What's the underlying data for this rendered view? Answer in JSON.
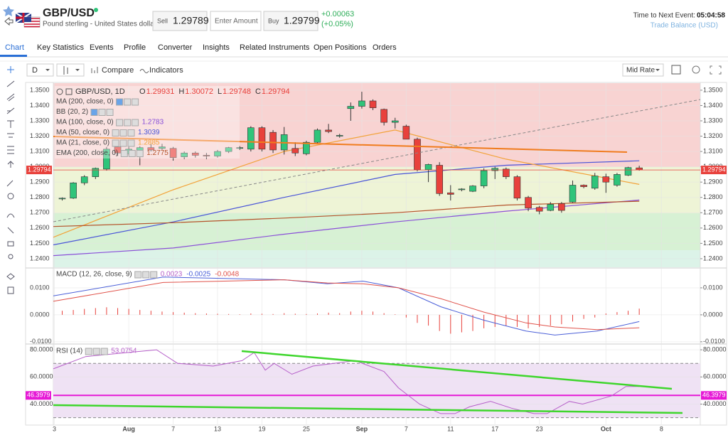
{
  "header": {
    "symbol": "GBP/USD",
    "description": "Pound sterling - United States dollar",
    "sell_label": "Sell",
    "sell_price": "1.29789",
    "amount_placeholder": "Enter Amount",
    "buy_label": "Buy",
    "buy_price": "1.29799",
    "change": "+0.00063",
    "change_pct": "(+0.05%)",
    "next_event_label": "Time to Next Event:",
    "next_event_time": "05:04:58",
    "next_event_name": "Trade Balance (USD)"
  },
  "tabs": [
    "Chart",
    "Key Statistics",
    "Events",
    "Profile",
    "Converter",
    "Insights",
    "Related Instruments",
    "Open Positions",
    "Orders"
  ],
  "toolbar": {
    "interval": "D",
    "compare": "Compare",
    "indicators": "Indicators",
    "price_type": "Mid Rate"
  },
  "chart_data": [
    {
      "type": "candlestick",
      "title": "GBP/USD, 1D",
      "ohlc_legend": [
        {
          "name": "O",
          "value": 1.29931
        },
        {
          "name": "H",
          "value": 1.30072
        },
        {
          "name": "L",
          "value": 1.29748
        },
        {
          "name": "C",
          "value": 1.29794
        }
      ],
      "current_price": 1.29794,
      "xlim": [
        -0.8,
        57.5
      ],
      "xticks": [
        {
          "value": -0.7,
          "label": "3"
        },
        {
          "value": 6,
          "label": "Aug"
        },
        {
          "value": 10,
          "label": "7"
        },
        {
          "value": 14,
          "label": "13"
        },
        {
          "value": 18,
          "label": "19"
        },
        {
          "value": 22,
          "label": "25"
        },
        {
          "value": 27,
          "label": "Sep"
        },
        {
          "value": 31,
          "label": "7"
        },
        {
          "value": 35,
          "label": "11"
        },
        {
          "value": 39,
          "label": "17"
        },
        {
          "value": 43,
          "label": "23"
        },
        {
          "value": 49,
          "label": "Oct"
        },
        {
          "value": 54,
          "label": "8"
        }
      ],
      "ylim": [
        1.2344,
        1.3546
      ],
      "yticks": [
        {
          "value": 1.35,
          "label": "1.3500"
        },
        {
          "value": 1.34,
          "label": "1.3400"
        },
        {
          "value": 1.33,
          "label": "1.3300"
        },
        {
          "value": 1.32,
          "label": "1.3200"
        },
        {
          "value": 1.31,
          "label": "1.3100"
        },
        {
          "value": 1.3,
          "label": "1.3000"
        },
        {
          "value": 1.29,
          "label": "1.2900"
        },
        {
          "value": 1.28,
          "label": "1.2800"
        },
        {
          "value": 1.27,
          "label": "1.2700"
        },
        {
          "value": 1.26,
          "label": "1.2600"
        },
        {
          "value": 1.25,
          "label": "1.2500"
        },
        {
          "value": 1.24,
          "label": "1.2400"
        }
      ],
      "up_color": "#2fc47a",
      "down_color": "#e8413c",
      "ohlc": [
        [
          1.279,
          1.28,
          1.278,
          1.2795
        ],
        [
          1.2795,
          1.29,
          1.279,
          1.2895
        ],
        [
          1.2895,
          1.2945,
          1.288,
          1.2935
        ],
        [
          1.2935,
          1.2995,
          1.292,
          1.299
        ],
        [
          1.2985,
          1.313,
          1.2975,
          1.3115
        ],
        [
          1.313,
          1.3145,
          1.307,
          1.309
        ],
        [
          1.3085,
          1.313,
          1.3075,
          1.3115
        ],
        [
          1.31,
          1.3135,
          1.301,
          1.3125
        ],
        [
          1.3125,
          1.315,
          1.31,
          1.311
        ],
        [
          1.312,
          1.315,
          1.311,
          1.313
        ],
        [
          1.312,
          1.313,
          1.304,
          1.306
        ],
        [
          1.3065,
          1.31,
          1.305,
          1.309
        ],
        [
          1.309,
          1.31,
          1.306,
          1.3075
        ],
        [
          1.3075,
          1.309,
          1.305,
          1.307
        ],
        [
          1.307,
          1.311,
          1.306,
          1.31
        ],
        [
          1.31,
          1.313,
          1.309,
          1.3125
        ],
        [
          1.312,
          1.3135,
          1.311,
          1.3125
        ],
        [
          1.3115,
          1.3265,
          1.31,
          1.3255
        ],
        [
          1.3255,
          1.3265,
          1.31,
          1.3115
        ],
        [
          1.3225,
          1.324,
          1.309,
          1.311
        ],
        [
          1.311,
          1.326,
          1.308,
          1.321
        ],
        [
          1.312,
          1.316,
          1.307,
          1.309
        ],
        [
          1.3085,
          1.317,
          1.3075,
          1.316
        ],
        [
          1.316,
          1.325,
          1.315,
          1.324
        ],
        [
          1.324,
          1.328,
          1.322,
          1.323
        ],
        [
          1.32,
          1.3215,
          1.319,
          1.3205
        ],
        [
          1.338,
          1.342,
          1.33,
          1.3395
        ],
        [
          1.3395,
          1.349,
          1.338,
          1.343
        ],
        [
          1.343,
          1.344,
          1.337,
          1.3385
        ],
        [
          1.3375,
          1.338,
          1.327,
          1.329
        ],
        [
          1.329,
          1.332,
          1.325,
          1.33
        ],
        [
          1.3265,
          1.3275,
          1.318,
          1.318
        ],
        [
          1.318,
          1.319,
          1.297,
          1.298
        ],
        [
          1.298,
          1.302,
          1.29,
          1.3015
        ],
        [
          1.301,
          1.303,
          1.281,
          1.2825
        ],
        [
          1.283,
          1.288,
          1.278,
          1.282
        ],
        [
          1.285,
          1.286,
          1.284,
          1.2855
        ],
        [
          1.284,
          1.288,
          1.2835,
          1.2875
        ],
        [
          1.2875,
          1.299,
          1.286,
          1.2975
        ],
        [
          1.2975,
          1.3,
          1.292,
          1.299
        ],
        [
          1.2985,
          1.2995,
          1.292,
          1.2935
        ],
        [
          1.2935,
          1.2945,
          1.278,
          1.2795
        ],
        [
          1.28,
          1.281,
          1.271,
          1.273
        ],
        [
          1.2735,
          1.2745,
          1.269,
          1.271
        ],
        [
          1.2715,
          1.277,
          1.271,
          1.2755
        ],
        [
          1.276,
          1.277,
          1.27,
          1.2715
        ],
        [
          1.277,
          1.291,
          1.2765,
          1.288
        ],
        [
          1.288,
          1.2885,
          1.286,
          1.287
        ],
        [
          1.286,
          1.296,
          1.285,
          1.294
        ],
        [
          1.2935,
          1.2955,
          1.283,
          1.29
        ],
        [
          1.288,
          1.296,
          1.287,
          1.295
        ],
        [
          1.2945,
          1.3,
          1.294,
          1.2995
        ],
        [
          1.29931,
          1.30072,
          1.29748,
          1.29794
        ]
      ],
      "legend_only": [
        "MA (200, close, 0)",
        "BB (20, 2)"
      ],
      "series": [
        {
          "name": "MA (100, close, 0)",
          "color": "#8a4fd8",
          "value_label": "1.2783",
          "x": [
            -0.8,
            10,
            20,
            30,
            40,
            52
          ],
          "values": [
            1.242,
            1.247,
            1.256,
            1.264,
            1.271,
            1.2783
          ]
        },
        {
          "name": "MA (50, close, 0)",
          "color": "#4a55d8",
          "value_label": "1.3039",
          "x": [
            -0.8,
            10,
            20,
            30,
            40,
            52
          ],
          "values": [
            1.249,
            1.264,
            1.28,
            1.295,
            1.301,
            1.3039
          ]
        },
        {
          "name": "MA (21, close, 0)",
          "color": "#f2a33a",
          "value_label": "1.2885",
          "x": [
            -0.8,
            10,
            20,
            30,
            40,
            52
          ],
          "values": [
            1.254,
            1.285,
            1.31,
            1.324,
            1.305,
            1.2885
          ]
        },
        {
          "name": "EMA (200, close, 0)",
          "color": "#b5532b",
          "value_label": "1.2775",
          "x": [
            -0.8,
            10,
            20,
            30,
            40,
            52
          ],
          "values": [
            1.261,
            1.2635,
            1.2665,
            1.27,
            1.275,
            1.2775
          ]
        }
      ]
    },
    {
      "type": "macd",
      "title": "MACD (12, 26, close, 9)",
      "ylim": [
        -0.0103,
        0.0171
      ],
      "yticks": [
        {
          "value": 0.01,
          "label": "0.0100"
        },
        {
          "value": 0,
          "label": "0.0000"
        },
        {
          "value": -0.01,
          "label": "-0.0100"
        }
      ],
      "histogram": {
        "color": "#e8413c",
        "value_label": "0.0023",
        "values": [
          0.0015,
          0.0018,
          0.0022,
          0.0025,
          0.0028,
          0.0025,
          0.0022,
          0.0018,
          0.0015,
          0.0012,
          0.001,
          0.0008,
          0.0006,
          0.0005,
          0.0004,
          0.0003,
          0.0002,
          0.0005,
          0.0004,
          0.0003,
          0.0006,
          0.0004,
          0.0003,
          0.0005,
          0.0008,
          0.0006,
          0.0012,
          0.0015,
          0.0012,
          0.0006,
          0.0002,
          -0.001,
          -0.003,
          -0.004,
          -0.006,
          -0.007,
          -0.0065,
          -0.006,
          -0.005,
          -0.0045,
          -0.004,
          -0.0045,
          -0.005,
          -0.0045,
          -0.004,
          -0.0035,
          -0.0025,
          -0.0015,
          -0.001,
          0.0005,
          0.001,
          0.0015,
          0.0023
        ]
      },
      "series": [
        {
          "color": "#4a5fd8",
          "value_label": "-0.0025",
          "x": [
            -0.8,
            9.1,
            20,
            23.9,
            27.1,
            30.3,
            34.1,
            38,
            41.8,
            44.4,
            48.2,
            52
          ],
          "values": [
            0.007,
            0.014,
            0.013,
            0.0115,
            0.0125,
            0.01,
            0.003,
            -0.002,
            -0.006,
            -0.0075,
            -0.006,
            -0.0025
          ]
        },
        {
          "color": "#e0524a",
          "value_label": "-0.0048",
          "x": [
            -0.8,
            9.1,
            20,
            23.9,
            27.1,
            30.3,
            34.1,
            38,
            41.8,
            44.4,
            48.2,
            52
          ],
          "values": [
            0.005,
            0.012,
            0.013,
            0.0118,
            0.0115,
            0.01,
            0.006,
            0.001,
            -0.003,
            -0.0045,
            -0.0055,
            -0.0048
          ]
        }
      ]
    },
    {
      "type": "rsi",
      "title": "RSI (14)",
      "ylim": [
        25.1,
        83.2
      ],
      "yticks": [
        {
          "value": 80,
          "label": "80.0000"
        },
        {
          "value": 60,
          "label": "60.0000"
        },
        {
          "value": 40,
          "label": "40.0000"
        }
      ],
      "band": [
        30,
        70
      ],
      "level": 46.3979,
      "level_color": "#e619d6",
      "series": [
        {
          "color": "#b65fc9",
          "value_label": "53.0754",
          "x": [
            -0.8,
            2.1,
            8.5,
            10.4,
            13.6,
            16.2,
            17.3,
            18.3,
            19.1,
            20.7,
            22.6,
            26.4,
            29,
            30.3,
            32.2,
            34.1,
            35.4,
            36.7,
            38.6,
            40.5,
            42.5,
            43.7,
            45.7,
            46.9,
            49.5,
            50.8,
            52
          ],
          "values": [
            66,
            75,
            80,
            70,
            68,
            72,
            78,
            65,
            70,
            62,
            68,
            72,
            64,
            52,
            40,
            33,
            33,
            38,
            42,
            37,
            33,
            33,
            42,
            40,
            46,
            53,
            53
          ]
        }
      ]
    }
  ]
}
